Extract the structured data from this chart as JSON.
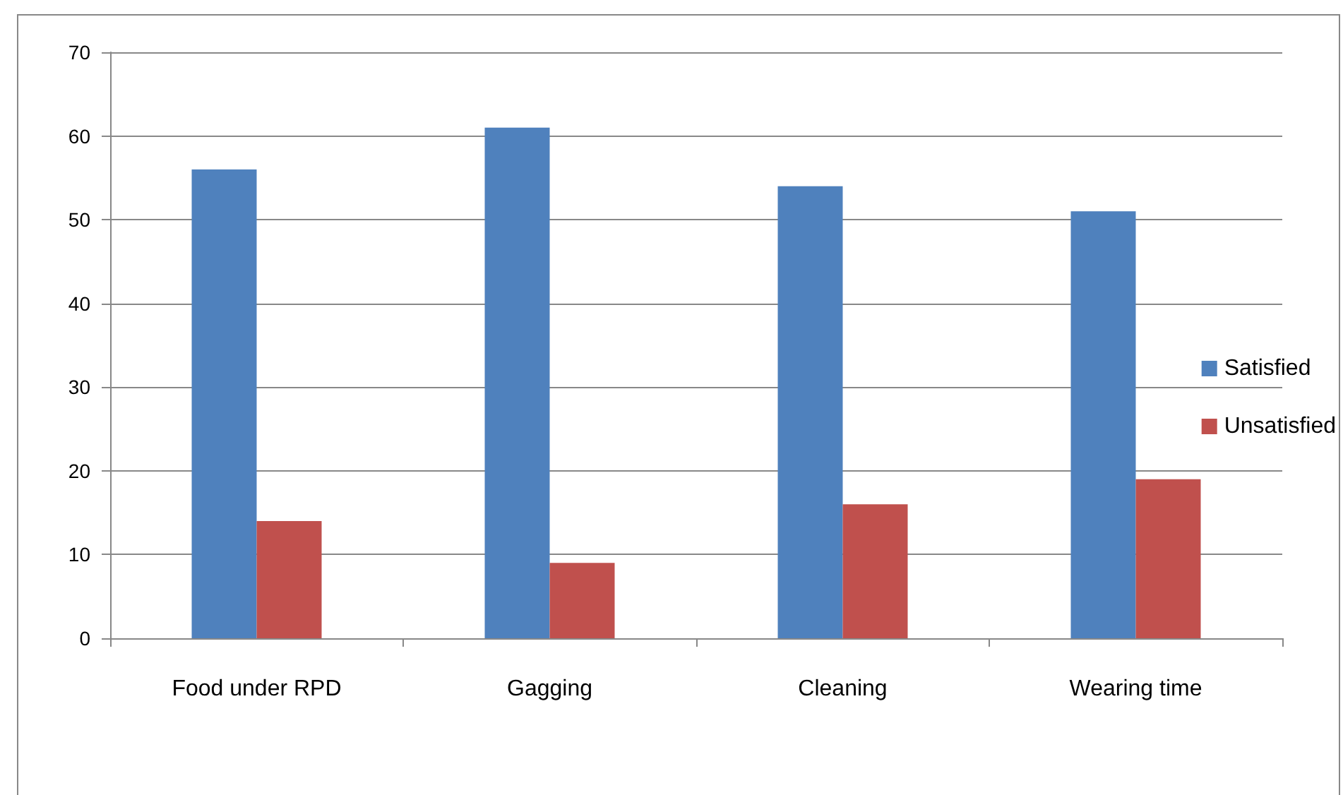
{
  "chart_data": {
    "type": "bar",
    "categories": [
      "Food under RPD",
      "Gagging",
      "Cleaning",
      "Wearing time"
    ],
    "series": [
      {
        "name": "Satisfied",
        "color": "#4f81bd",
        "values": [
          56,
          61,
          54,
          51
        ]
      },
      {
        "name": "Unsatisfied",
        "color": "#c0504d",
        "values": [
          14,
          9,
          16,
          19
        ]
      }
    ],
    "ylim": [
      0,
      70
    ],
    "yticks": [
      0,
      10,
      20,
      30,
      40,
      50,
      60,
      70
    ],
    "grid": "y",
    "legend": "right"
  }
}
